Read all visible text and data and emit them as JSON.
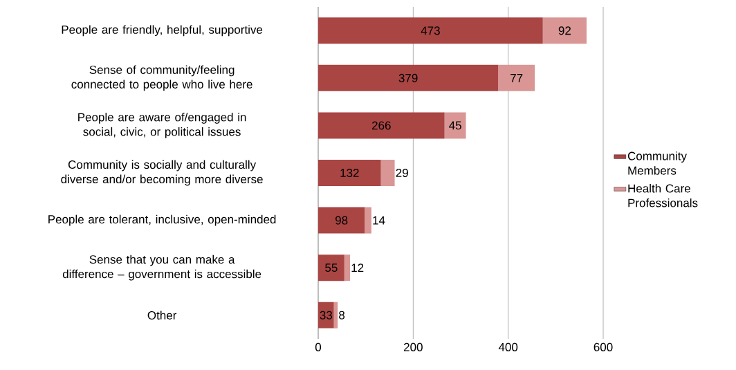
{
  "chart_data": {
    "type": "bar",
    "orientation": "horizontal",
    "stacked": true,
    "categories": [
      "People are friendly, helpful, supportive",
      "Sense of community/feeling connected to people who live here",
      "People are aware of/engaged in social, civic, or political issues",
      "Community is socially and culturally diverse and/or becoming more diverse",
      "People are tolerant, inclusive, open-minded",
      "Sense that you can make a difference – government is accessible",
      "Other"
    ],
    "series": [
      {
        "name": "Community Members",
        "color": "#a94543",
        "values": [
          473,
          379,
          266,
          132,
          98,
          55,
          33
        ]
      },
      {
        "name": "Health Care Professionals",
        "color": "#d99694",
        "values": [
          92,
          77,
          45,
          29,
          14,
          12,
          8
        ]
      }
    ],
    "xlim": [
      0,
      600
    ],
    "xticks": [
      0,
      200,
      400,
      600
    ],
    "grid": "x",
    "legend": "right",
    "data_labels": true
  }
}
